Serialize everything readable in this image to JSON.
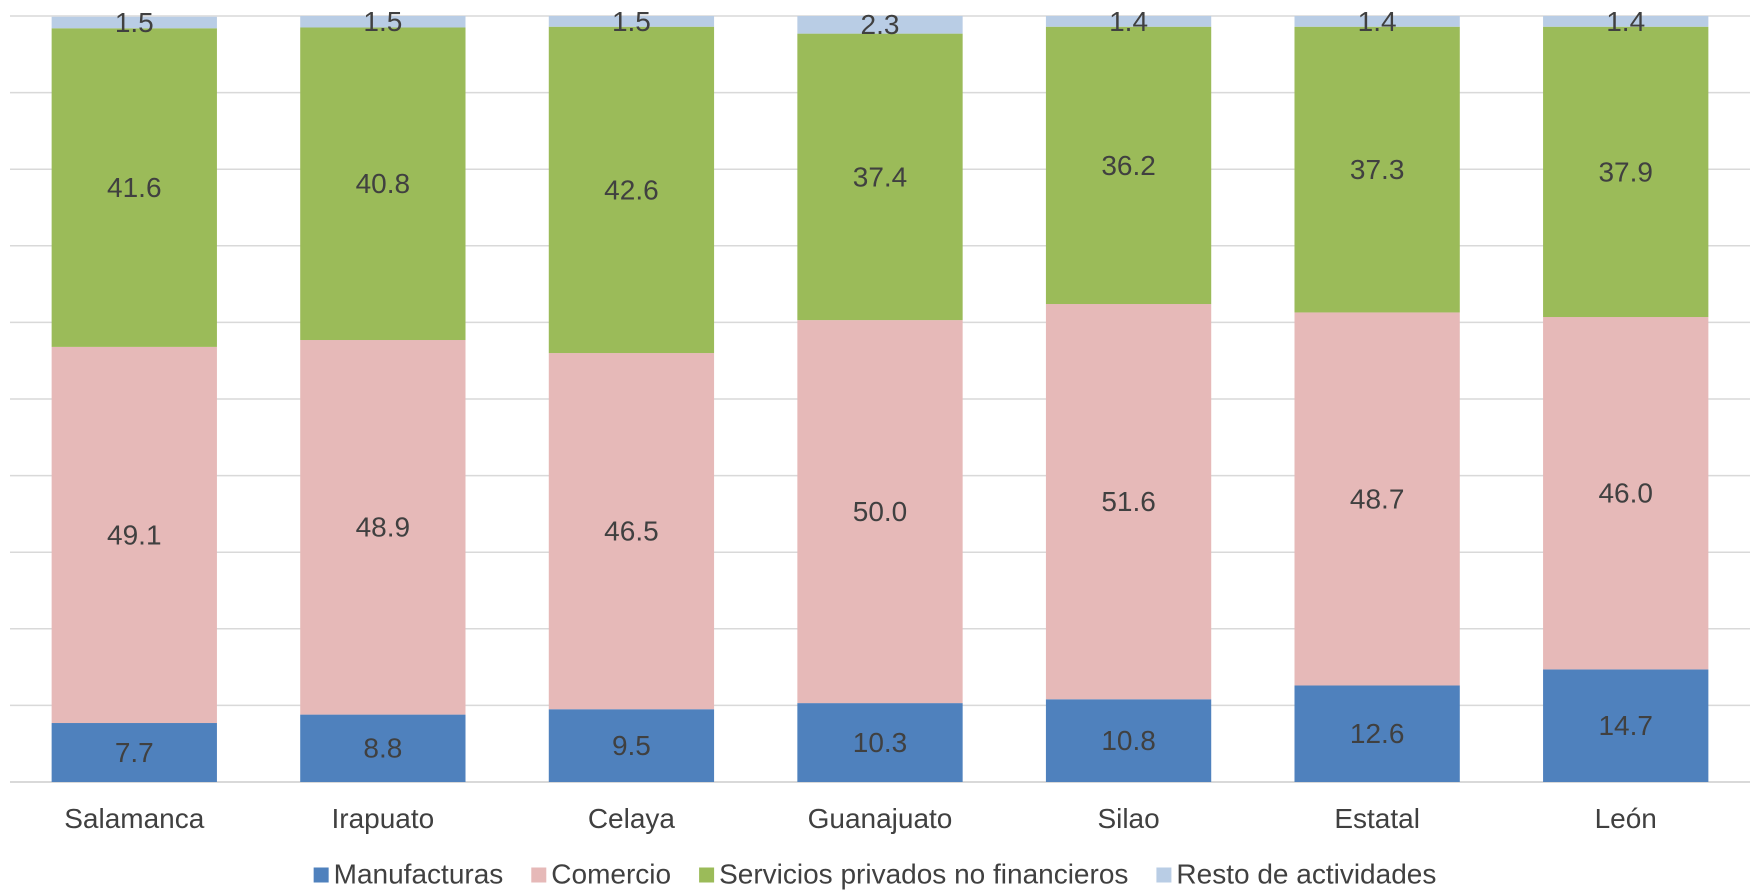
{
  "chart_data": {
    "type": "bar",
    "stacked": true,
    "categories": [
      "Salamanca",
      "Irapuato",
      "Celaya",
      "Guanajuato",
      "Silao",
      "Estatal",
      "León"
    ],
    "series": [
      {
        "name": "Manufacturas",
        "color": "#4f81bd",
        "values": [
          7.7,
          8.8,
          9.5,
          10.3,
          10.8,
          12.6,
          14.7
        ]
      },
      {
        "name": "Comercio",
        "color": "#e6b9b8",
        "values": [
          49.1,
          48.9,
          46.5,
          50.0,
          51.6,
          48.7,
          46.0
        ]
      },
      {
        "name": "Servicios privados no financieros",
        "color": "#9bbb59",
        "values": [
          41.6,
          40.8,
          42.6,
          37.4,
          36.2,
          37.3,
          37.9
        ]
      },
      {
        "name": "Resto de actividades",
        "color": "#b9cde5",
        "values": [
          1.5,
          1.5,
          1.5,
          2.3,
          1.4,
          1.4,
          1.4
        ]
      }
    ],
    "ylim": [
      0,
      100
    ],
    "grid": true,
    "legend_position": "bottom"
  }
}
